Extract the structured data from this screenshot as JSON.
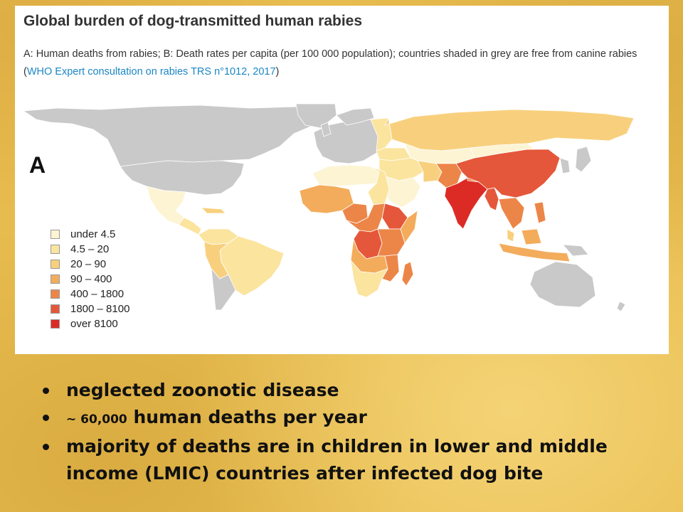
{
  "panel": {
    "title": "Global burden of dog-transmitted human rabies",
    "caption_text": "A: Human deaths from rabies; B: Death rates per capita (per 100 000 population); countries shaded in grey are free from canine rabies (",
    "caption_link": "WHO Expert consultation on rabies TRS n°1012, 2017",
    "caption_end": ")",
    "panel_letter": "A"
  },
  "legend": {
    "items": [
      {
        "label": "under 4.5",
        "color": "#fdf4d4"
      },
      {
        "label": "4.5 – 20",
        "color": "#fbe49e"
      },
      {
        "label": "20 – 90",
        "color": "#f8d07d"
      },
      {
        "label": "90 – 400",
        "color": "#f3ac5b"
      },
      {
        "label": "400 – 1800",
        "color": "#ec8648"
      },
      {
        "label": "1800 – 8100",
        "color": "#e5573a"
      },
      {
        "label": "over 8100",
        "color": "#dc2b25"
      }
    ]
  },
  "map_colors": {
    "rabies_free": "#c9c9c9",
    "border": "#ffffff"
  },
  "bullets": {
    "item1": "neglected zoonotic disease",
    "item2_prefix": "~ 60,000",
    "item2_rest": " human deaths per year",
    "item3": "majority of deaths are in children in lower and middle income (LMIC) countries after infected dog bite"
  }
}
